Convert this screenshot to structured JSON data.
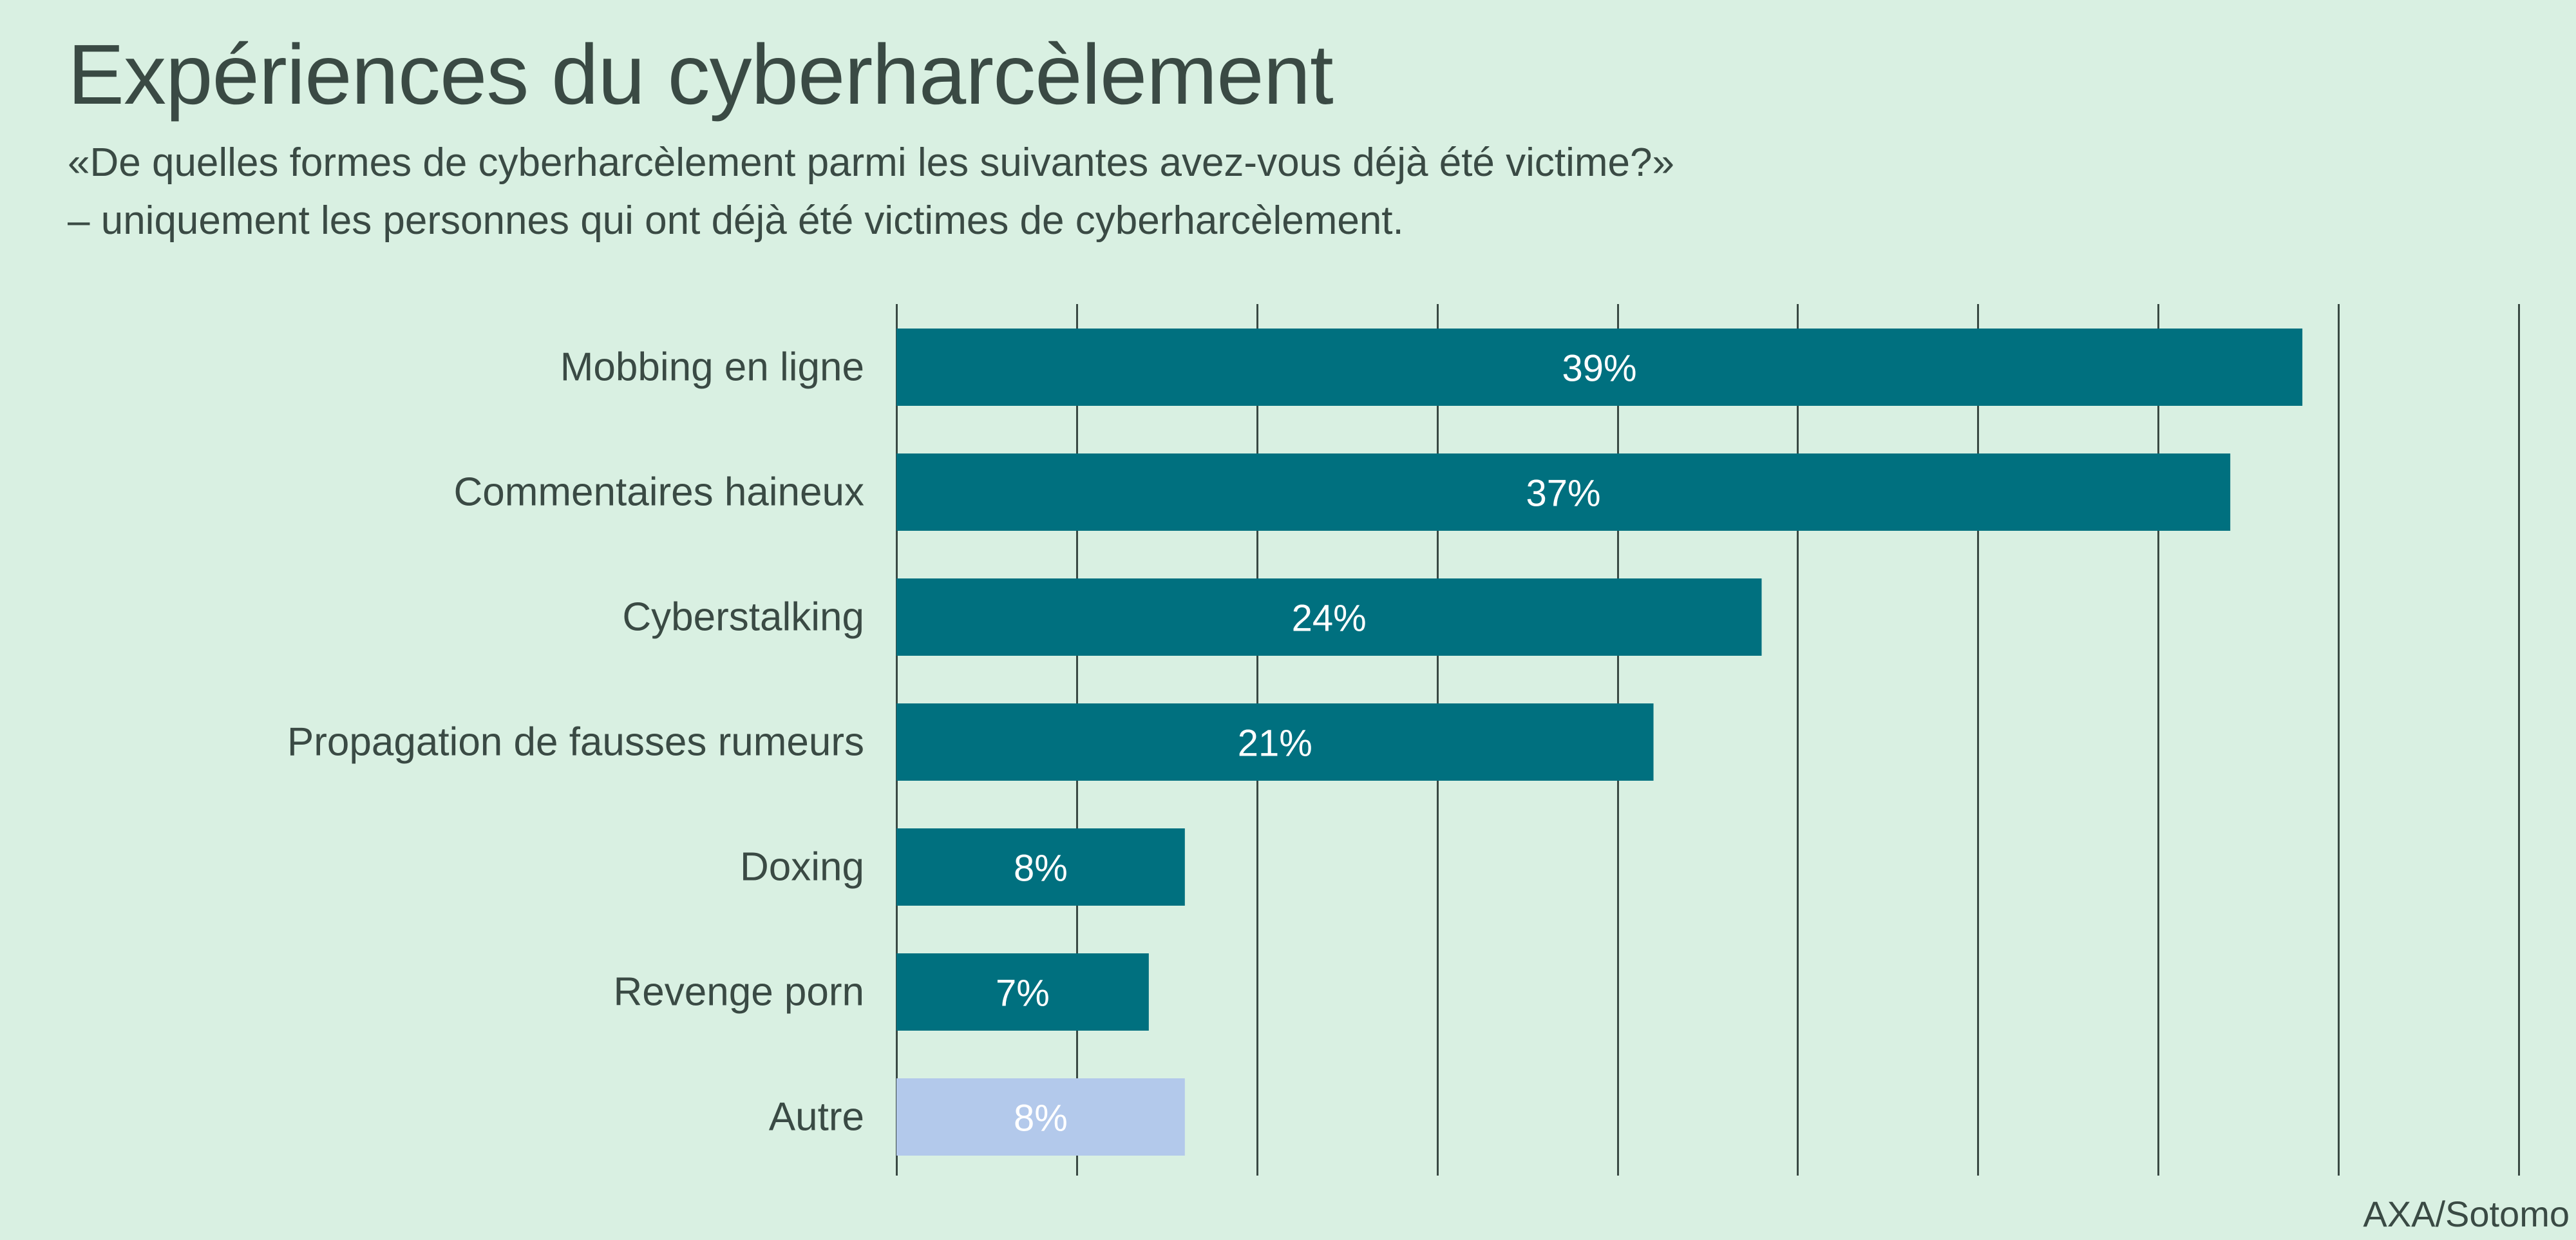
{
  "title": "Expériences du cyberharcèlement",
  "subtitle": [
    "«De quelles formes de cyberharcèlement parmi les suivantes avez-vous déjà été victime?»",
    "– uniquement les personnes qui ont déjà été victimes de cyberharcèlement."
  ],
  "source": "AXA/Sotomo",
  "colors": {
    "bar": "#00707f",
    "bar_other": "#b3c9eb",
    "grid": "#3a4a44",
    "label": "#3a4a44",
    "value_label": "#ffffff"
  },
  "chart_data": {
    "type": "bar",
    "orientation": "horizontal",
    "categories": [
      "Mobbing en ligne",
      "Commentaires haineux",
      "Cyberstalking",
      "Propagation de fausses rumeurs",
      "Doxing",
      "Revenge porn",
      "Autre"
    ],
    "values": [
      39,
      37,
      24,
      21,
      8,
      7,
      8
    ],
    "value_labels": [
      "39%",
      "37%",
      "24%",
      "21%",
      "8%",
      "7%",
      "8%"
    ],
    "highlight": [
      false,
      false,
      false,
      false,
      false,
      false,
      true
    ],
    "xlim": [
      0,
      45
    ],
    "x_grid_step": 5,
    "grid": true,
    "legend": "none",
    "xlabel": "",
    "ylabel": ""
  }
}
